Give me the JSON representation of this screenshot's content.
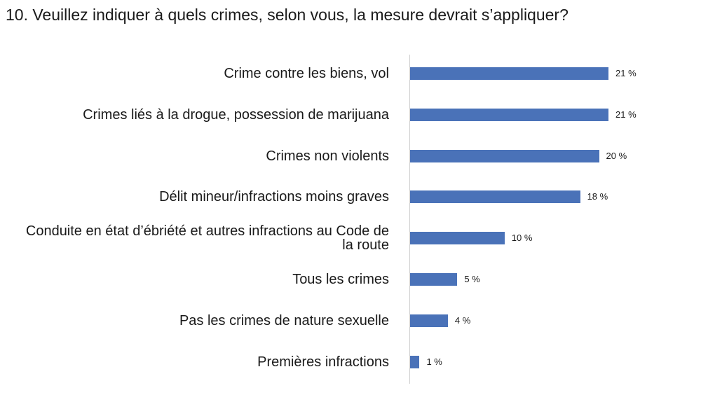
{
  "page": {
    "title": "10. Veuillez indiquer à quels crimes, selon vous, la mesure devrait s’appliquer?"
  },
  "colors": {
    "bar": "#4a72b8",
    "axis": "#d0d0d0",
    "text": "#1a1a1a"
  },
  "chart_data": {
    "type": "bar",
    "orientation": "horizontal",
    "title": "10. Veuillez indiquer à quels crimes, selon vous, la mesure devrait s’appliquer?",
    "categories": [
      "Crime contre les biens, vol",
      "Crimes liés à la drogue, possession de marijuana",
      "Crimes non violents",
      "Délit mineur/infractions moins graves",
      "Conduite en état d’ébriété et autres infractions au Code de la route",
      "Tous les crimes",
      "Pas les crimes de nature sexuelle",
      "Premières infractions"
    ],
    "values": [
      21,
      21,
      20,
      18,
      10,
      5,
      4,
      1
    ],
    "value_labels": [
      "21 %",
      "21 %",
      "20 %",
      "18 %",
      "10 %",
      "5 %",
      "4 %",
      "1 %"
    ],
    "unit": "%",
    "xlim": [
      0,
      21
    ],
    "grid": false,
    "legend": "none"
  }
}
